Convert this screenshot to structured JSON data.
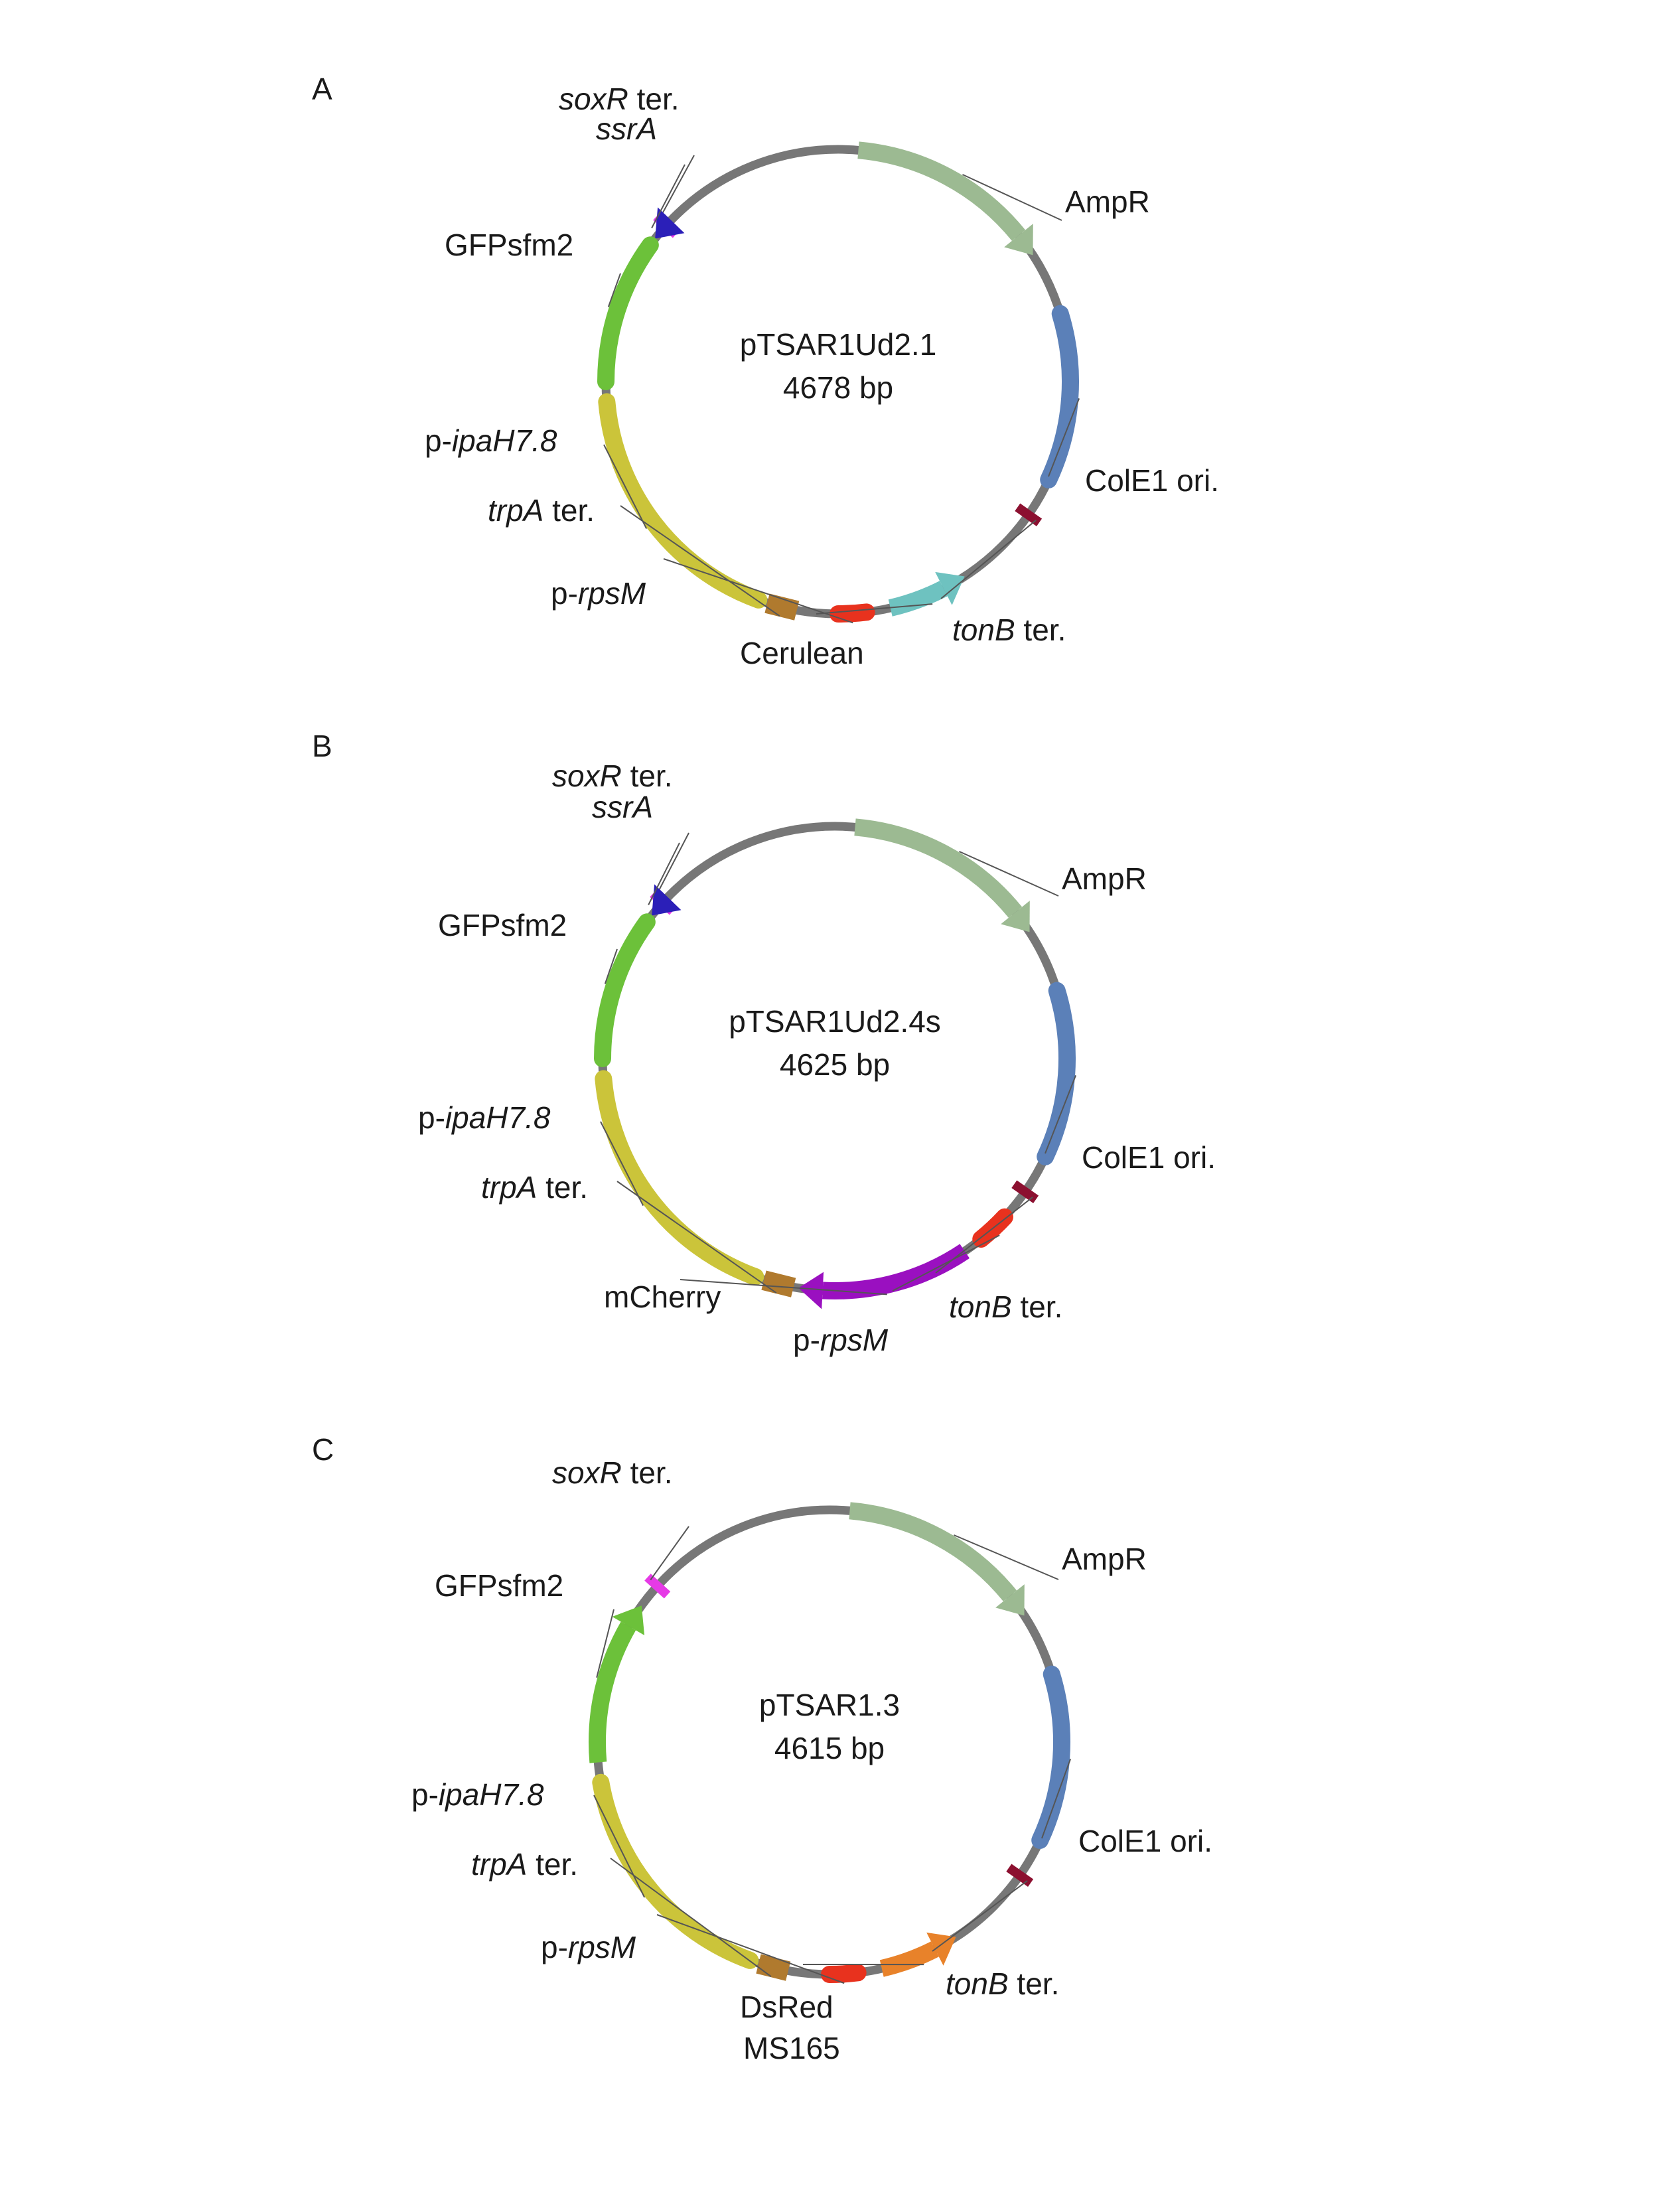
{
  "plasmids": [
    {
      "panel": "A",
      "name": "pTSAR1Ud2.1",
      "size": "4678 bp",
      "features": [
        {
          "id": "soxR-ter",
          "label_parts": [
            {
              "t": "soxR",
              "i": true
            },
            {
              "t": " ter.",
              "i": false
            }
          ],
          "color": "#e63ae6",
          "kind": "box"
        },
        {
          "id": "ssrA",
          "label_parts": [
            {
              "t": "ssrA",
              "i": true
            }
          ],
          "color": "#2b1fb8",
          "kind": "arrow-ccw"
        },
        {
          "id": "gfpsfm2",
          "label_parts": [
            {
              "t": "GFPsfm2",
              "i": false
            }
          ],
          "color": "#6cc13a",
          "kind": "arc"
        },
        {
          "id": "p-ipaH7.8",
          "label_parts": [
            {
              "t": "p-",
              "i": false
            },
            {
              "t": "ipaH7.8",
              "i": true
            }
          ],
          "color": "#cbc43a",
          "kind": "arc"
        },
        {
          "id": "trpA-ter",
          "label_parts": [
            {
              "t": "trpA",
              "i": true
            },
            {
              "t": " ter.",
              "i": false
            }
          ],
          "color": "#b07a2e",
          "kind": "box"
        },
        {
          "id": "p-rpsM",
          "label_parts": [
            {
              "t": "p-",
              "i": false
            },
            {
              "t": "rpsM",
              "i": true
            }
          ],
          "color": "#e8321e",
          "kind": "arc"
        },
        {
          "id": "cerulean",
          "label_parts": [
            {
              "t": "Cerulean",
              "i": false
            }
          ],
          "color": "#6ec2c0",
          "kind": "arrow-ccw"
        },
        {
          "id": "tonB-ter",
          "label_parts": [
            {
              "t": "tonB",
              "i": true
            },
            {
              "t": " ter.",
              "i": false
            }
          ],
          "color": "#8c1030",
          "kind": "box"
        },
        {
          "id": "cole1-ori",
          "label_parts": [
            {
              "t": "ColE1 ori.",
              "i": false
            }
          ],
          "color": "#5b80b8",
          "kind": "arc"
        },
        {
          "id": "ampr",
          "label_parts": [
            {
              "t": "AmpR",
              "i": false
            }
          ],
          "color": "#9cba92",
          "kind": "arrow-cw"
        }
      ]
    },
    {
      "panel": "B",
      "name": "pTSAR1Ud2.4s",
      "size": "4625 bp",
      "features": [
        {
          "id": "soxR-ter",
          "label_parts": [
            {
              "t": "soxR",
              "i": true
            },
            {
              "t": " ter.",
              "i": false
            }
          ],
          "color": "#e63ae6",
          "kind": "box"
        },
        {
          "id": "ssrA",
          "label_parts": [
            {
              "t": "ssrA",
              "i": true
            }
          ],
          "color": "#2b1fb8",
          "kind": "arrow-ccw"
        },
        {
          "id": "gfpsfm2",
          "label_parts": [
            {
              "t": "GFPsfm2",
              "i": false
            }
          ],
          "color": "#6cc13a",
          "kind": "arc"
        },
        {
          "id": "p-ipaH7.8",
          "label_parts": [
            {
              "t": "p-",
              "i": false
            },
            {
              "t": "ipaH7.8",
              "i": true
            }
          ],
          "color": "#cbc43a",
          "kind": "arc"
        },
        {
          "id": "trpA-ter",
          "label_parts": [
            {
              "t": "trpA",
              "i": true
            },
            {
              "t": " ter.",
              "i": false
            }
          ],
          "color": "#b07a2e",
          "kind": "box"
        },
        {
          "id": "mcherry",
          "label_parts": [
            {
              "t": "mCherry",
              "i": false
            }
          ],
          "color": "#9a10c0",
          "kind": "arrow-cw"
        },
        {
          "id": "p-rpsM",
          "label_parts": [
            {
              "t": "p-",
              "i": false
            },
            {
              "t": "rpsM",
              "i": true
            }
          ],
          "color": "#e8321e",
          "kind": "arc"
        },
        {
          "id": "tonB-ter",
          "label_parts": [
            {
              "t": "tonB",
              "i": true
            },
            {
              "t": " ter.",
              "i": false
            }
          ],
          "color": "#8c1030",
          "kind": "box"
        },
        {
          "id": "cole1-ori",
          "label_parts": [
            {
              "t": "ColE1 ori.",
              "i": false
            }
          ],
          "color": "#5b80b8",
          "kind": "arc"
        },
        {
          "id": "ampr",
          "label_parts": [
            {
              "t": "AmpR",
              "i": false
            }
          ],
          "color": "#9cba92",
          "kind": "arrow-cw"
        }
      ]
    },
    {
      "panel": "C",
      "name": "pTSAR1.3",
      "size": "4615 bp",
      "features": [
        {
          "id": "soxR-ter",
          "label_parts": [
            {
              "t": "soxR",
              "i": true
            },
            {
              "t": " ter.",
              "i": false
            }
          ],
          "color": "#e63ae6",
          "kind": "box"
        },
        {
          "id": "gfpsfm2",
          "label_parts": [
            {
              "t": "GFPsfm2",
              "i": false
            }
          ],
          "color": "#6cc13a",
          "kind": "arrow-cw"
        },
        {
          "id": "p-ipaH7.8",
          "label_parts": [
            {
              "t": "p-",
              "i": false
            },
            {
              "t": "ipaH7.8",
              "i": true
            }
          ],
          "color": "#cbc43a",
          "kind": "arc"
        },
        {
          "id": "trpA-ter",
          "label_parts": [
            {
              "t": "trpA",
              "i": true
            },
            {
              "t": " ter.",
              "i": false
            }
          ],
          "color": "#b07a2e",
          "kind": "box"
        },
        {
          "id": "p-rpsM",
          "label_parts": [
            {
              "t": "p-",
              "i": false
            },
            {
              "t": "rpsM",
              "i": true
            }
          ],
          "color": "#e8321e",
          "kind": "arc"
        },
        {
          "id": "dsred",
          "label_parts": [
            {
              "t": "DsRed",
              "i": false
            }
          ],
          "label_line2": "MS165",
          "color": "#e8822a",
          "kind": "arrow-ccw"
        },
        {
          "id": "tonB-ter",
          "label_parts": [
            {
              "t": "tonB",
              "i": true
            },
            {
              "t": " ter.",
              "i": false
            }
          ],
          "color": "#8c1030",
          "kind": "box"
        },
        {
          "id": "cole1-ori",
          "label_parts": [
            {
              "t": "ColE1 ori.",
              "i": false
            }
          ],
          "color": "#5b80b8",
          "kind": "arc"
        },
        {
          "id": "ampr",
          "label_parts": [
            {
              "t": "AmpR",
              "i": false
            }
          ],
          "color": "#9cba92",
          "kind": "arrow-cw"
        }
      ]
    }
  ]
}
